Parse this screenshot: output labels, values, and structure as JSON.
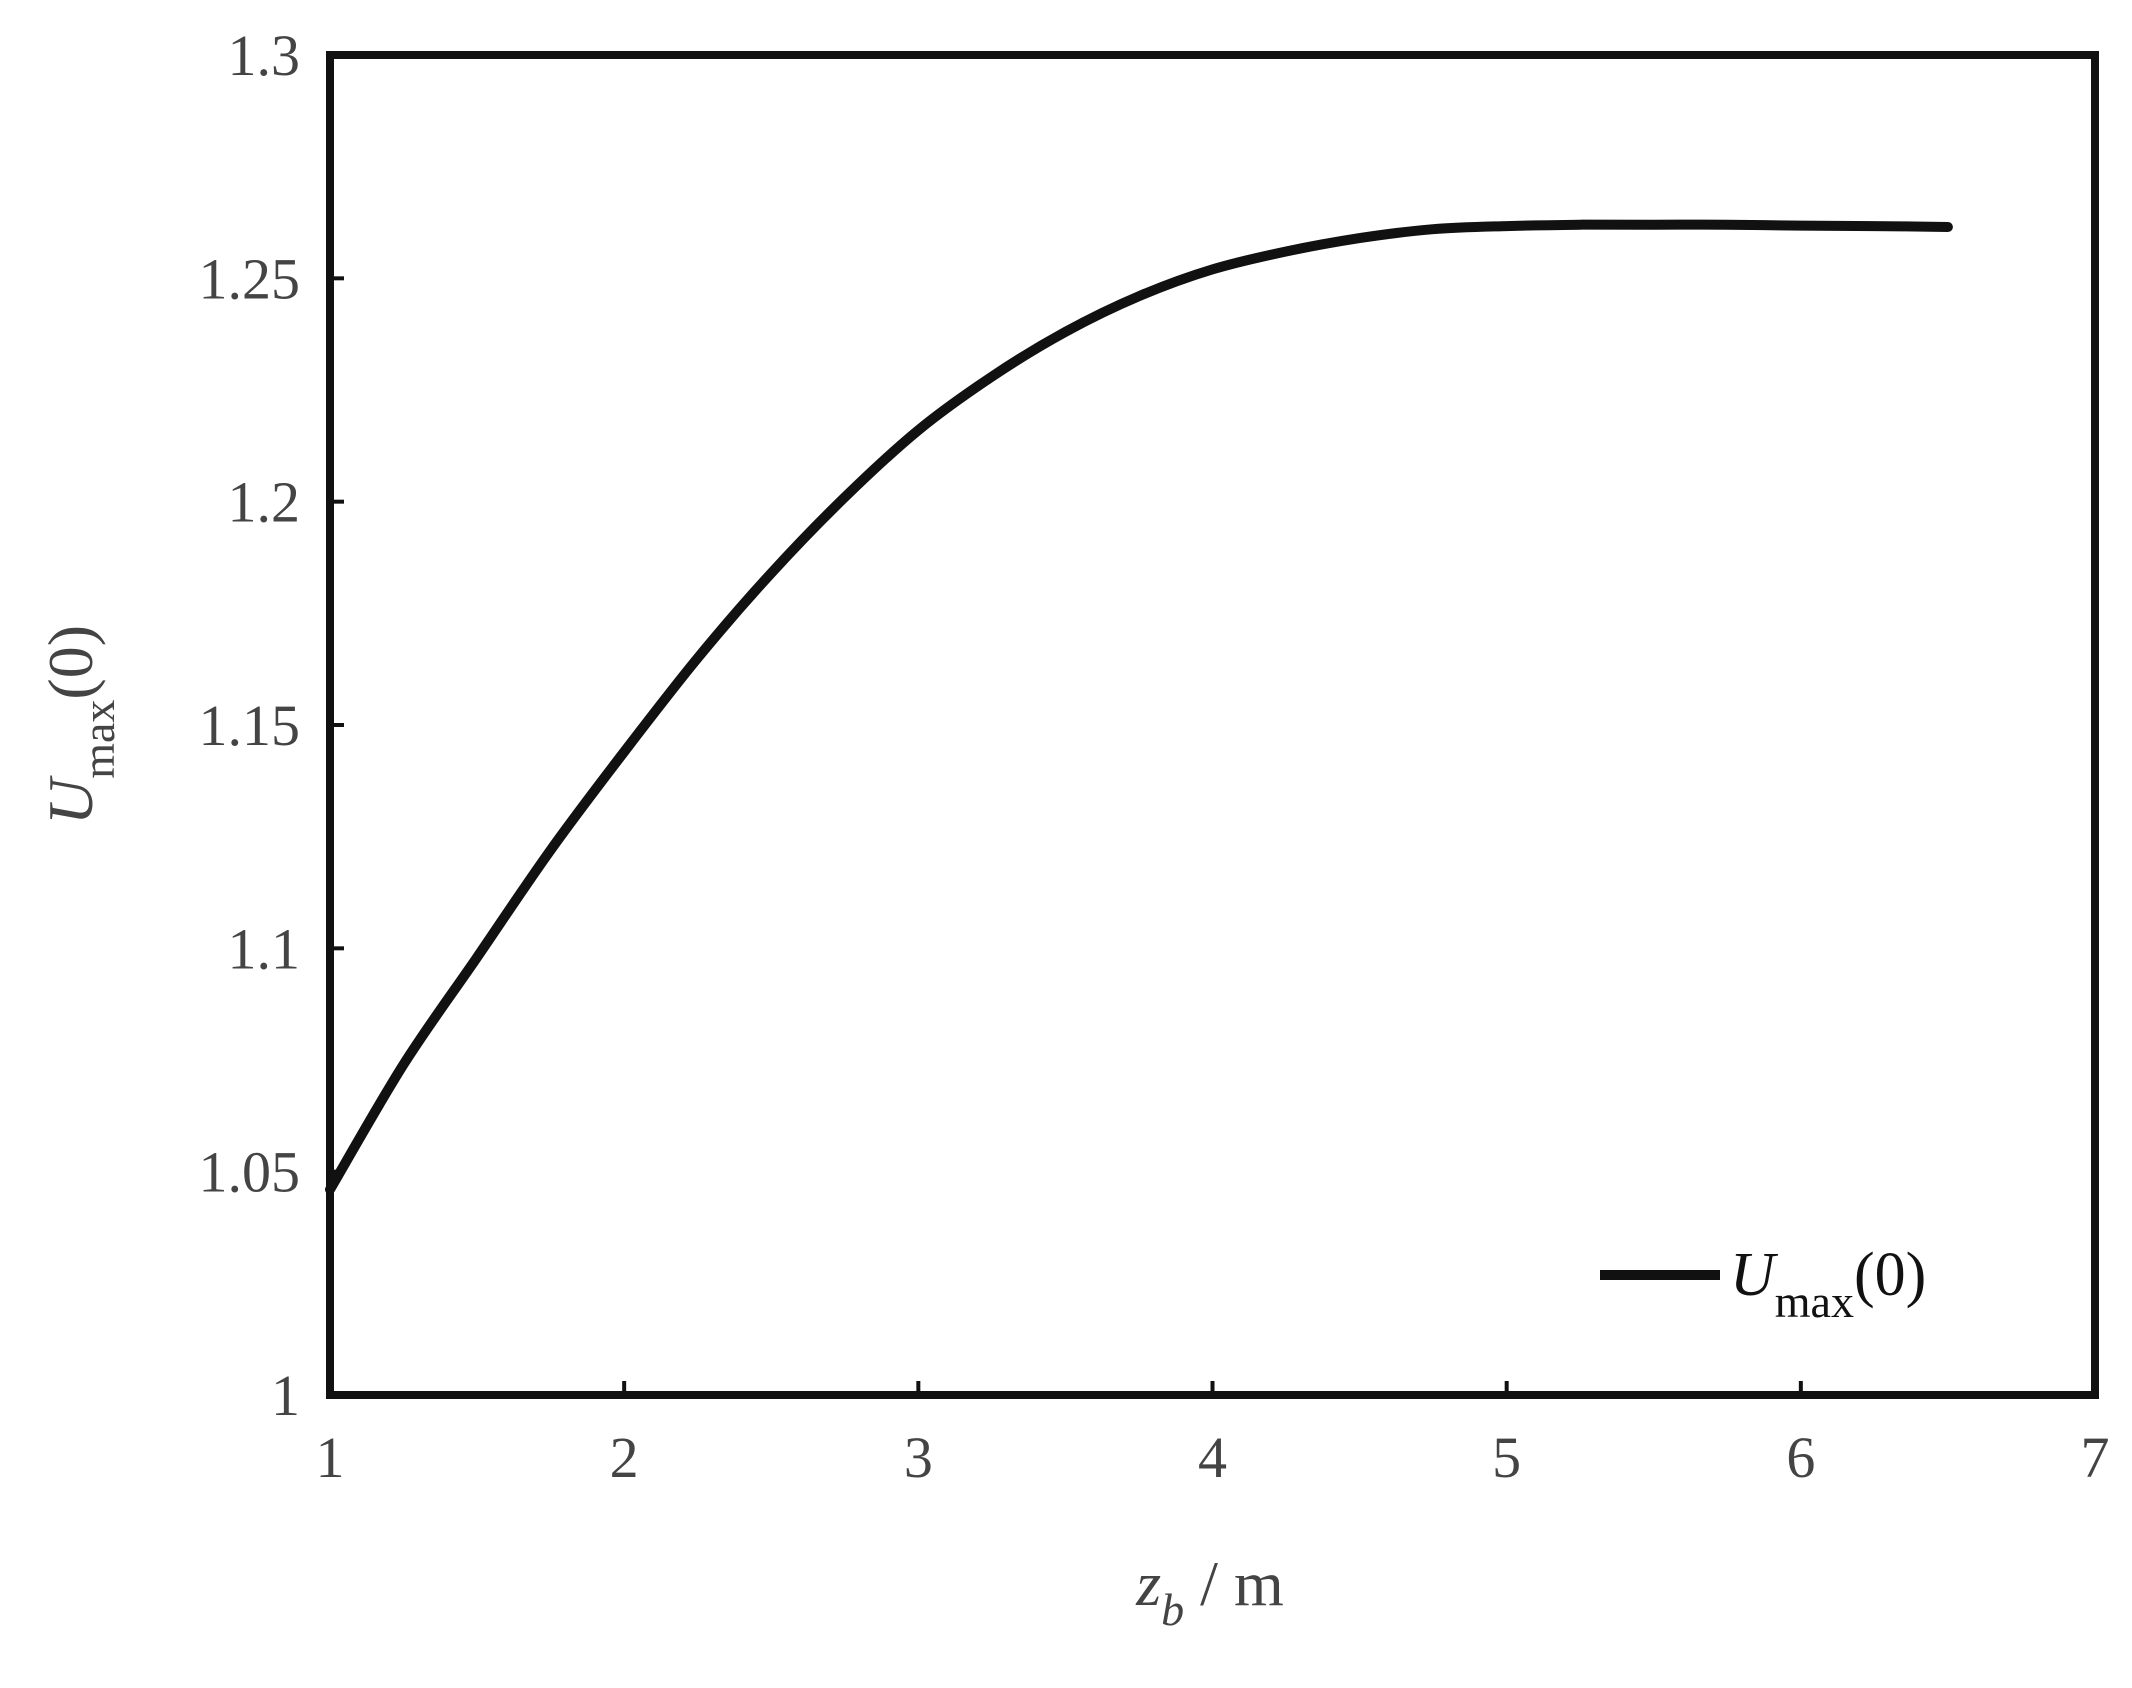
{
  "chart_data": {
    "type": "line",
    "xlabel": {
      "var": "z",
      "sub": "b",
      "unit": " / m"
    },
    "ylabel": {
      "var": "U",
      "sub": "max",
      "arg": "(0)"
    },
    "xlim": [
      1,
      7
    ],
    "ylim": [
      1,
      1.3
    ],
    "xticks": [
      1,
      2,
      3,
      4,
      5,
      6,
      7
    ],
    "yticks": [
      1,
      1.05,
      1.1,
      1.15,
      1.2,
      1.25,
      1.3
    ],
    "xtick_labels": [
      "1",
      "2",
      "3",
      "4",
      "5",
      "6",
      "7"
    ],
    "ytick_labels": [
      "1",
      "1.05",
      "1.1",
      "1.15",
      "1.2",
      "1.25",
      "1.3"
    ],
    "grid": false,
    "legend_position": "bottom-right",
    "series": [
      {
        "name": {
          "var": "U",
          "sub": "max",
          "arg": "(0)"
        },
        "color": "#111111",
        "x": [
          1.0,
          1.25,
          1.5,
          1.75,
          2.0,
          2.25,
          2.5,
          2.75,
          3.0,
          3.25,
          3.5,
          3.75,
          4.0,
          4.25,
          4.5,
          4.75,
          5.0,
          5.25,
          5.5,
          5.75,
          6.0,
          6.25,
          6.5
        ],
        "y": [
          1.046,
          1.074,
          1.098,
          1.122,
          1.144,
          1.165,
          1.184,
          1.201,
          1.216,
          1.228,
          1.238,
          1.246,
          1.252,
          1.256,
          1.259,
          1.261,
          1.2617,
          1.262,
          1.262,
          1.262,
          1.2618,
          1.2617,
          1.2615
        ]
      }
    ]
  }
}
